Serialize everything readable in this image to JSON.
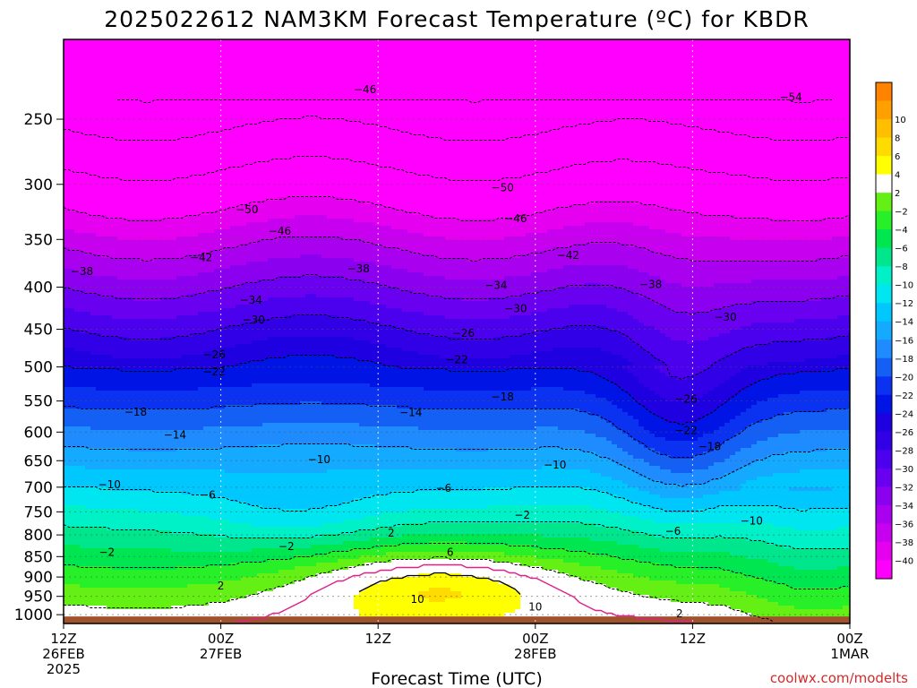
{
  "chart_data": {
    "type": "heatmap",
    "title": "2025022612 NAM3KM Forecast Temperature (ºC) for KBDR",
    "xlabel": "Forecast Time (UTC)",
    "ylabel": "",
    "x_ticks": [
      {
        "hour": 0,
        "lines": [
          "12Z",
          "26FEB",
          "2025"
        ]
      },
      {
        "hour": 12,
        "lines": [
          "00Z",
          "27FEB"
        ]
      },
      {
        "hour": 24,
        "lines": [
          "12Z"
        ]
      },
      {
        "hour": 36,
        "lines": [
          "00Z",
          "28FEB"
        ]
      },
      {
        "hour": 48,
        "lines": [
          "12Z"
        ]
      },
      {
        "hour": 60,
        "lines": [
          "00Z",
          "1MAR"
        ]
      }
    ],
    "xlim": [
      0,
      60
    ],
    "y_axis_scale": "log-pressure, reversed",
    "y_ticks": [
      250,
      300,
      350,
      400,
      450,
      500,
      550,
      600,
      650,
      700,
      750,
      800,
      850,
      900,
      950,
      1000
    ],
    "ylim_hpa": [
      200,
      1025
    ],
    "colorbar": {
      "bounds": [
        -42,
        -40,
        -38,
        -36,
        -34,
        -32,
        -30,
        -28,
        -26,
        -24,
        -22,
        -20,
        -18,
        -16,
        -14,
        -12,
        -10,
        -8,
        -6,
        -4,
        -2,
        2,
        4,
        6,
        8,
        10,
        12
      ],
      "colors": [
        "#ff00ff",
        "#e600f0",
        "#c800f0",
        "#aa00f0",
        "#8c00f0",
        "#6a00f0",
        "#4b00ee",
        "#3200e6",
        "#1e00e0",
        "#0014e6",
        "#0a32f0",
        "#1460f5",
        "#1e8cff",
        "#14aaff",
        "#00c8ff",
        "#00e6f0",
        "#00f0c8",
        "#00e68c",
        "#00e650",
        "#28f028",
        "#64f014",
        "#ffffff",
        "#ffff00",
        "#ffdc00",
        "#ffbe00",
        "#ffa000",
        "#ff8200"
      ],
      "labels": [
        {
          "v": 10,
          "t": "10"
        },
        {
          "v": 8,
          "t": "8"
        },
        {
          "v": 6,
          "t": "6"
        },
        {
          "v": 4,
          "t": "4"
        },
        {
          "v": 2,
          "t": "2"
        },
        {
          "v": -2,
          "t": "−2"
        },
        {
          "v": -4,
          "t": "−4"
        },
        {
          "v": -6,
          "t": "−6"
        },
        {
          "v": -8,
          "t": "−8"
        },
        {
          "v": -10,
          "t": "−10"
        },
        {
          "v": -12,
          "t": "−12"
        },
        {
          "v": -14,
          "t": "−14"
        },
        {
          "v": -16,
          "t": "−16"
        },
        {
          "v": -18,
          "t": "−18"
        },
        {
          "v": -20,
          "t": "−20"
        },
        {
          "v": -22,
          "t": "−22"
        },
        {
          "v": -24,
          "t": "−24"
        },
        {
          "v": -26,
          "t": "−26"
        },
        {
          "v": -28,
          "t": "−28"
        },
        {
          "v": -30,
          "t": "−30"
        },
        {
          "v": -32,
          "t": "−32"
        },
        {
          "v": -34,
          "t": "−34"
        },
        {
          "v": -36,
          "t": "−36"
        },
        {
          "v": -38,
          "t": "−38"
        },
        {
          "v": -40,
          "t": "−40"
        }
      ]
    },
    "surface_color": "#a0522d",
    "freezing_line_color": "#e0208a",
    "contour_labels": [
      {
        "t": "−46",
        "h": 23,
        "p": 230
      },
      {
        "t": "−54",
        "h": 55.5,
        "p": 235
      },
      {
        "t": "−50",
        "h": 14,
        "p": 322
      },
      {
        "t": "−50",
        "h": 33.5,
        "p": 303
      },
      {
        "t": "−46",
        "h": 16.5,
        "p": 342
      },
      {
        "t": "−46",
        "h": 34.5,
        "p": 330
      },
      {
        "t": "−42",
        "h": 10.5,
        "p": 368
      },
      {
        "t": "−42",
        "h": 38.5,
        "p": 366
      },
      {
        "t": "−38",
        "h": 1.4,
        "p": 383
      },
      {
        "t": "−38",
        "h": 22.5,
        "p": 380
      },
      {
        "t": "−38",
        "h": 44.8,
        "p": 397
      },
      {
        "t": "−34",
        "h": 14.3,
        "p": 415
      },
      {
        "t": "−34",
        "h": 33,
        "p": 398
      },
      {
        "t": "−30",
        "h": 14.5,
        "p": 438
      },
      {
        "t": "−30",
        "h": 34.5,
        "p": 425
      },
      {
        "t": "−30",
        "h": 50.5,
        "p": 435
      },
      {
        "t": "−26",
        "h": 11.5,
        "p": 483
      },
      {
        "t": "−26",
        "h": 30.5,
        "p": 455
      },
      {
        "t": "−26",
        "h": 47.5,
        "p": 547
      },
      {
        "t": "−22",
        "h": 11.5,
        "p": 507
      },
      {
        "t": "−22",
        "h": 30,
        "p": 490
      },
      {
        "t": "−22",
        "h": 47.5,
        "p": 597
      },
      {
        "t": "−18",
        "h": 5.5,
        "p": 567
      },
      {
        "t": "−18",
        "h": 33.5,
        "p": 544
      },
      {
        "t": "−18",
        "h": 49.3,
        "p": 625
      },
      {
        "t": "−14",
        "h": 8.5,
        "p": 605
      },
      {
        "t": "−14",
        "h": 26.5,
        "p": 568
      },
      {
        "t": "−10",
        "h": 3.5,
        "p": 695
      },
      {
        "t": "−10",
        "h": 19.5,
        "p": 648
      },
      {
        "t": "−10",
        "h": 37.5,
        "p": 658
      },
      {
        "t": "−10",
        "h": 52.5,
        "p": 769
      },
      {
        "t": "−6",
        "h": 11,
        "p": 715
      },
      {
        "t": "−6",
        "h": 29,
        "p": 702
      },
      {
        "t": "−6",
        "h": 46.5,
        "p": 792
      },
      {
        "t": "−2",
        "h": 3.3,
        "p": 840
      },
      {
        "t": "−2",
        "h": 17,
        "p": 826
      },
      {
        "t": "−2",
        "h": 35,
        "p": 757
      },
      {
        "t": "2",
        "h": 12,
        "p": 923
      },
      {
        "t": "2",
        "h": 25,
        "p": 796
      },
      {
        "t": "2",
        "h": 47,
        "p": 997
      },
      {
        "t": "6",
        "h": 29.5,
        "p": 840
      },
      {
        "t": "10",
        "h": 27,
        "p": 958
      },
      {
        "t": "10",
        "h": 36,
        "p": 978
      }
    ],
    "watermark": "coolwx.com/modelts"
  }
}
